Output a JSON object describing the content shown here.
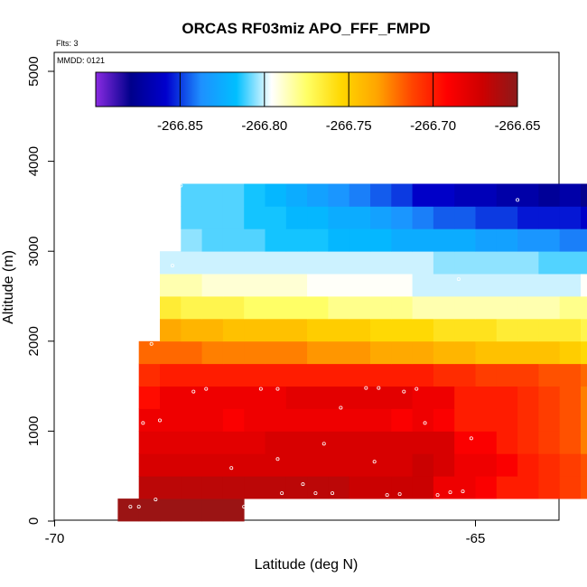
{
  "chart_data": {
    "type": "heatmap",
    "title": "ORCAS RF03miz APO_FFF_FMPD",
    "flights_label": "Flts: 3",
    "date_label": "MMDD: 0121",
    "xlabel": "Latitude (deg N)",
    "ylabel": "Altitude (m)",
    "xlim": [
      -70,
      -64
    ],
    "ylim": [
      0,
      5200
    ],
    "x_ticks": [
      -70,
      -65
    ],
    "x_tick_labels": [
      "-70",
      "-65"
    ],
    "y_ticks": [
      0,
      1000,
      2000,
      3000,
      4000,
      5000
    ],
    "y_tick_labels": [
      "0",
      "1000",
      "2000",
      "3000",
      "4000",
      "5000"
    ],
    "colorbar": {
      "min": -266.9,
      "max": -266.65,
      "ticks": [
        -266.85,
        -266.8,
        -266.75,
        -266.7,
        -266.65
      ],
      "tick_labels": [
        "-266.85",
        "-266.80",
        "-266.75",
        "-266.70",
        "-266.65"
      ],
      "stops": [
        "#8a2be2",
        "#00008b",
        "#0000cd",
        "#1e90ff",
        "#00bfff",
        "#ffffff",
        "#ffff66",
        "#ffd700",
        "#ffa500",
        "#ff4500",
        "#ff0000",
        "#cd0000",
        "#8b1a1a"
      ]
    },
    "cell_width_deg": 0.25,
    "cell_height_m": 250,
    "rows": [
      {
        "alt": 0,
        "lat_start": -69.25,
        "values": [
          -266.655,
          -266.655,
          -266.655,
          -266.655,
          -266.655,
          -266.655
        ]
      },
      {
        "alt": 250,
        "lat_start": -69.0,
        "values": [
          -266.665,
          -266.665,
          -266.665,
          -266.665,
          -266.665,
          -266.665,
          -266.665,
          -266.665,
          -266.665,
          -266.665,
          -266.67,
          -266.67,
          -266.67,
          -266.67,
          -266.685,
          -266.685,
          -266.69,
          -266.7,
          -266.7,
          -266.705,
          -266.71,
          -266.715
        ]
      },
      {
        "alt": 500,
        "lat_start": -69.0,
        "values": [
          -266.675,
          -266.675,
          -266.675,
          -266.675,
          -266.675,
          -266.675,
          -266.675,
          -266.675,
          -266.675,
          -266.675,
          -266.675,
          -266.675,
          -266.675,
          -266.67,
          -266.675,
          -266.685,
          -266.685,
          -266.69,
          -266.7,
          -266.705,
          -266.71,
          -266.715
        ]
      },
      {
        "alt": 750,
        "lat_start": -69.0,
        "values": [
          -266.68,
          -266.68,
          -266.68,
          -266.68,
          -266.68,
          -266.68,
          -266.675,
          -266.675,
          -266.675,
          -266.675,
          -266.675,
          -266.675,
          -266.675,
          -266.675,
          -266.675,
          -266.69,
          -266.69,
          -266.7,
          -266.705,
          -266.71,
          -266.715,
          -266.725
        ]
      },
      {
        "alt": 1000,
        "lat_start": -69.0,
        "values": [
          -266.685,
          -266.685,
          -266.685,
          -266.685,
          -266.69,
          -266.685,
          -266.685,
          -266.685,
          -266.685,
          -266.685,
          -266.685,
          -266.685,
          -266.69,
          -266.685,
          -266.69,
          -266.7,
          -266.7,
          -266.7,
          -266.705,
          -266.71,
          -266.715,
          -266.725
        ]
      },
      {
        "alt": 1250,
        "lat_start": -69.0,
        "values": [
          -266.695,
          -266.685,
          -266.685,
          -266.685,
          -266.685,
          -266.685,
          -266.685,
          -266.68,
          -266.68,
          -266.68,
          -266.68,
          -266.68,
          -266.68,
          -266.685,
          -266.685,
          -266.7,
          -266.7,
          -266.7,
          -266.705,
          -266.71,
          -266.715,
          -266.725
        ]
      },
      {
        "alt": 1500,
        "lat_start": -69.0,
        "values": [
          -266.705,
          -266.7,
          -266.7,
          -266.7,
          -266.7,
          -266.7,
          -266.7,
          -266.7,
          -266.7,
          -266.7,
          -266.7,
          -266.7,
          -266.7,
          -266.7,
          -266.705,
          -266.705,
          -266.71,
          -266.71,
          -266.71,
          -266.715,
          -266.715,
          -266.72
        ]
      },
      {
        "alt": 1750,
        "lat_start": -69.0,
        "values": [
          -266.72,
          -266.72,
          -266.72,
          -266.725,
          -266.725,
          -266.725,
          -266.725,
          -266.725,
          -266.73,
          -266.73,
          -266.73,
          -266.735,
          -266.735,
          -266.735,
          -266.74,
          -266.74,
          -266.745,
          -266.745,
          -266.745,
          -266.745,
          -266.75,
          -266.755,
          -266.76
        ]
      },
      {
        "alt": 2000,
        "lat_start": -68.75,
        "values": [
          -266.735,
          -266.74,
          -266.74,
          -266.745,
          -266.745,
          -266.745,
          -266.745,
          -266.75,
          -266.75,
          -266.75,
          -266.755,
          -266.755,
          -266.755,
          -266.76,
          -266.76,
          -266.76,
          -266.765,
          -266.765,
          -266.765,
          -266.765,
          -266.77,
          -266.77
        ]
      },
      {
        "alt": 2250,
        "lat_start": -68.75,
        "values": [
          -266.765,
          -266.77,
          -266.77,
          -266.77,
          -266.775,
          -266.775,
          -266.775,
          -266.775,
          -266.78,
          -266.78,
          -266.78,
          -266.78,
          -266.785,
          -266.785,
          -266.785,
          -266.785,
          -266.785,
          -266.785,
          -266.785,
          -266.78,
          -266.78,
          -266.78
        ]
      },
      {
        "alt": 2500,
        "lat_start": -68.75,
        "values": [
          -266.785,
          -266.785,
          -266.79,
          -266.79,
          -266.79,
          -266.79,
          -266.79,
          -266.795,
          -266.795,
          -266.795,
          -266.795,
          -266.795,
          -266.8,
          -266.8,
          -266.8,
          -266.8,
          -266.8,
          -266.8,
          -266.8,
          -266.8,
          -266.795,
          -266.795
        ]
      },
      {
        "alt": 2750,
        "lat_start": -68.75,
        "values": [
          -266.8,
          -266.8,
          -266.8,
          -266.8,
          -266.8,
          -266.8,
          -266.8,
          -266.8,
          -266.8,
          -266.8,
          -266.8,
          -266.8,
          -266.8,
          -266.805,
          -266.805,
          -266.805,
          -266.805,
          -266.805,
          -266.81,
          -266.81,
          -266.81,
          -266.815
        ]
      },
      {
        "alt": 3000,
        "lat_start": -68.5,
        "values": [
          -266.805,
          -266.81,
          -266.81,
          -266.81,
          -266.815,
          -266.815,
          -266.815,
          -266.82,
          -266.82,
          -266.82,
          -266.825,
          -266.825,
          -266.825,
          -266.825,
          -266.83,
          -266.83,
          -266.835,
          -266.835,
          -266.84,
          -266.84,
          -266.845
        ]
      },
      {
        "alt": 3250,
        "lat_start": -68.5,
        "values": [
          -266.81,
          -266.81,
          -266.81,
          -266.815,
          -266.815,
          -266.82,
          -266.82,
          -266.825,
          -266.825,
          -266.83,
          -266.835,
          -266.84,
          -266.845,
          -266.845,
          -266.85,
          -266.85,
          -266.855,
          -266.855,
          -266.855,
          -266.86,
          -266.865
        ]
      },
      {
        "alt": 3500,
        "lat_start": -68.5,
        "values": [
          -266.81,
          -266.81,
          -266.81,
          -266.815,
          -266.82,
          -266.825,
          -266.83,
          -266.835,
          -266.84,
          -266.845,
          -266.85,
          -266.86,
          -266.86,
          -266.865,
          -266.865,
          -266.87,
          -266.87,
          -266.875,
          -266.87,
          -266.88,
          -266.885,
          -266.89,
          -266.895
        ]
      }
    ],
    "observation_points": [
      [
        -69.1,
        160
      ],
      [
        -69.0,
        160
      ],
      [
        -68.8,
        240
      ],
      [
        -67.75,
        160
      ],
      [
        -67.6,
        160
      ],
      [
        -69.05,
        400
      ],
      [
        -67.3,
        310
      ],
      [
        -67.05,
        410
      ],
      [
        -66.9,
        310
      ],
      [
        -66.7,
        310
      ],
      [
        -66.05,
        290
      ],
      [
        -65.9,
        300
      ],
      [
        -65.45,
        290
      ],
      [
        -65.3,
        320
      ],
      [
        -65.15,
        330
      ],
      [
        -67.9,
        590
      ],
      [
        -67.35,
        690
      ],
      [
        -66.8,
        860
      ],
      [
        -66.2,
        660
      ],
      [
        -65.05,
        920
      ],
      [
        -68.95,
        1090
      ],
      [
        -68.75,
        1120
      ],
      [
        -66.6,
        1260
      ],
      [
        -65.6,
        1090
      ],
      [
        -68.35,
        1440
      ],
      [
        -68.2,
        1470
      ],
      [
        -67.55,
        1470
      ],
      [
        -67.35,
        1470
      ],
      [
        -66.3,
        1480
      ],
      [
        -66.15,
        1480
      ],
      [
        -65.85,
        1440
      ],
      [
        -65.7,
        1470
      ],
      [
        -68.85,
        1970
      ],
      [
        -68.6,
        2840
      ],
      [
        -68.5,
        3730
      ],
      [
        -65.2,
        2690
      ],
      [
        -64.5,
        3570
      ]
    ]
  }
}
